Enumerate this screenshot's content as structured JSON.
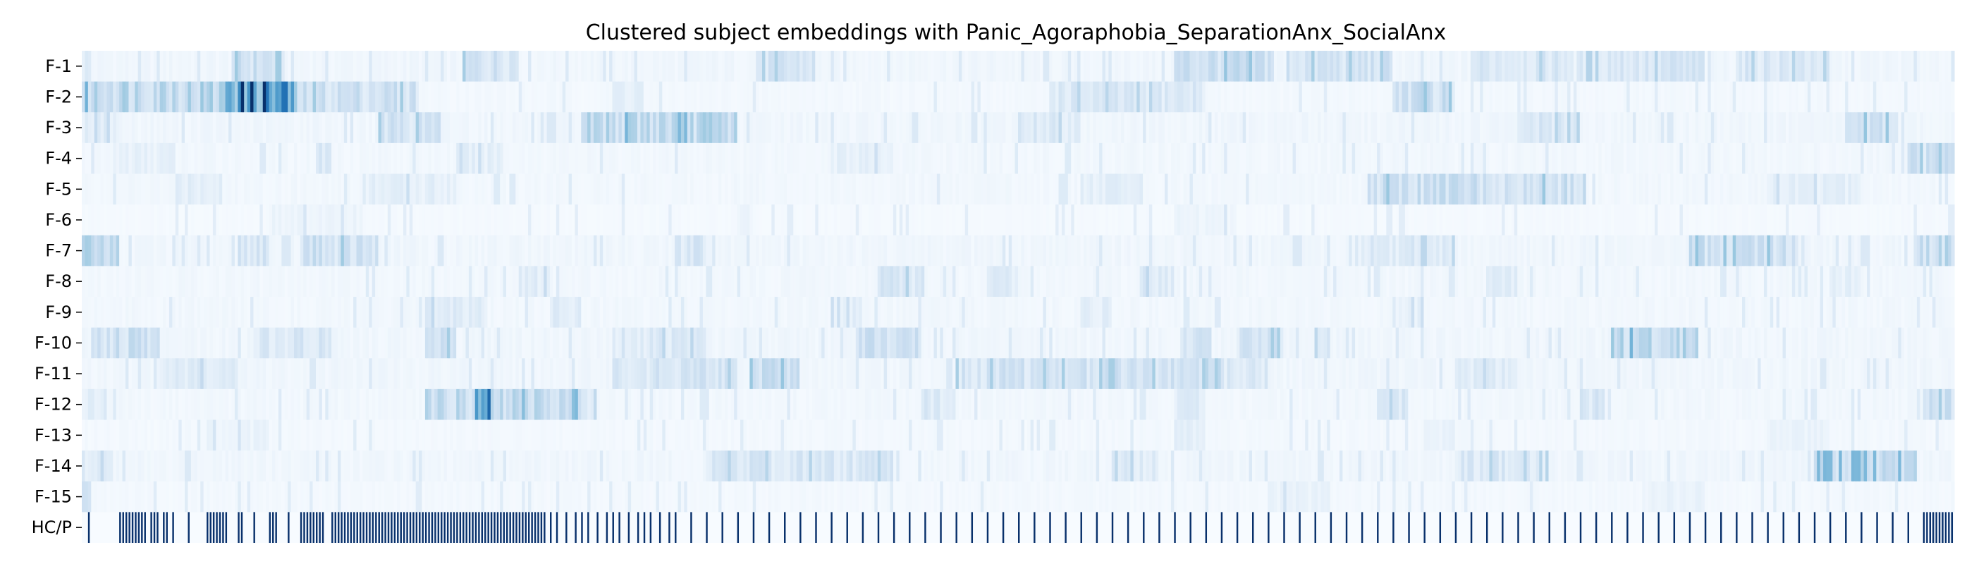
{
  "chart_data": {
    "type": "heatmap",
    "title": "Clustered subject embeddings with Panic_Agoraphobia_SeparationAnx_SocialAnx",
    "xlabel": "",
    "ylabel": "",
    "colormap": "Blues",
    "value_range": [
      0,
      1
    ],
    "n_columns": 600,
    "rows": [
      "F-1",
      "F-2",
      "F-3",
      "F-4",
      "F-5",
      "F-6",
      "F-7",
      "F-8",
      "F-9",
      "F-10",
      "F-11",
      "F-12",
      "F-13",
      "F-14",
      "F-15",
      "HC/P"
    ],
    "feature_hotspots": [
      {
        "row": "F-1",
        "base": 0.05,
        "bands": [
          [
            0,
            3,
            0.1
          ],
          [
            48,
            65,
            0.2
          ],
          [
            122,
            140,
            0.18
          ],
          [
            216,
            235,
            0.16
          ],
          [
            350,
            382,
            0.22
          ],
          [
            386,
            420,
            0.18
          ],
          [
            445,
            478,
            0.14
          ],
          [
            480,
            520,
            0.15
          ],
          [
            530,
            560,
            0.14
          ]
        ]
      },
      {
        "row": "F-2",
        "base": 0.03,
        "bands": [
          [
            0,
            60,
            0.32
          ],
          [
            46,
            68,
            0.45
          ],
          [
            60,
            108,
            0.22
          ],
          [
            170,
            180,
            0.1
          ],
          [
            310,
            360,
            0.15
          ],
          [
            420,
            440,
            0.24
          ]
        ]
      },
      {
        "row": "F-3",
        "base": 0.05,
        "bands": [
          [
            0,
            12,
            0.1
          ],
          [
            95,
            115,
            0.18
          ],
          [
            160,
            210,
            0.28
          ],
          [
            300,
            320,
            0.12
          ],
          [
            460,
            480,
            0.14
          ],
          [
            565,
            582,
            0.22
          ]
        ]
      },
      {
        "row": "F-4",
        "base": 0.04,
        "bands": [
          [
            10,
            30,
            0.06
          ],
          [
            75,
            80,
            0.14
          ],
          [
            120,
            135,
            0.08
          ],
          [
            240,
            260,
            0.07
          ],
          [
            585,
            600,
            0.2
          ]
        ]
      },
      {
        "row": "F-5",
        "base": 0.04,
        "bands": [
          [
            30,
            45,
            0.1
          ],
          [
            90,
            120,
            0.08
          ],
          [
            320,
            340,
            0.08
          ],
          [
            412,
            482,
            0.22
          ],
          [
            540,
            570,
            0.08
          ]
        ]
      },
      {
        "row": "F-6",
        "base": 0.02,
        "bands": [
          [
            60,
            90,
            0.05
          ],
          [
            210,
            215,
            0.05
          ],
          [
            350,
            370,
            0.05
          ]
        ]
      },
      {
        "row": "F-7",
        "base": 0.05,
        "bands": [
          [
            0,
            12,
            0.28
          ],
          [
            50,
            60,
            0.16
          ],
          [
            70,
            95,
            0.2
          ],
          [
            190,
            200,
            0.14
          ],
          [
            410,
            440,
            0.12
          ],
          [
            515,
            550,
            0.22
          ],
          [
            588,
            600,
            0.26
          ]
        ]
      },
      {
        "row": "F-8",
        "base": 0.04,
        "bands": [
          [
            140,
            150,
            0.1
          ],
          [
            255,
            270,
            0.16
          ],
          [
            290,
            300,
            0.12
          ],
          [
            340,
            350,
            0.12
          ],
          [
            450,
            460,
            0.1
          ],
          [
            560,
            570,
            0.08
          ]
        ]
      },
      {
        "row": "F-9",
        "base": 0.04,
        "bands": [
          [
            110,
            130,
            0.12
          ],
          [
            150,
            160,
            0.1
          ],
          [
            240,
            250,
            0.08
          ],
          [
            320,
            330,
            0.08
          ],
          [
            420,
            430,
            0.08
          ]
        ]
      },
      {
        "row": "F-10",
        "base": 0.05,
        "bands": [
          [
            3,
            25,
            0.2
          ],
          [
            55,
            80,
            0.14
          ],
          [
            110,
            120,
            0.18
          ],
          [
            170,
            200,
            0.12
          ],
          [
            248,
            268,
            0.2
          ],
          [
            352,
            362,
            0.16
          ],
          [
            370,
            385,
            0.18
          ],
          [
            395,
            400,
            0.12
          ],
          [
            490,
            518,
            0.3
          ]
        ]
      },
      {
        "row": "F-11",
        "base": 0.05,
        "bands": [
          [
            25,
            50,
            0.1
          ],
          [
            170,
            210,
            0.16
          ],
          [
            214,
            230,
            0.22
          ],
          [
            280,
            365,
            0.18
          ],
          [
            360,
            380,
            0.12
          ],
          [
            440,
            460,
            0.1
          ]
        ]
      },
      {
        "row": "F-12",
        "base": 0.04,
        "bands": [
          [
            0,
            8,
            0.1
          ],
          [
            110,
            160,
            0.26
          ],
          [
            126,
            132,
            0.4
          ],
          [
            158,
            165,
            0.12
          ],
          [
            270,
            280,
            0.14
          ],
          [
            350,
            360,
            0.1
          ],
          [
            415,
            425,
            0.14
          ],
          [
            480,
            488,
            0.16
          ],
          [
            590,
            600,
            0.2
          ]
        ]
      },
      {
        "row": "F-13",
        "base": 0.03,
        "bands": [
          [
            40,
            60,
            0.05
          ],
          [
            350,
            360,
            0.08
          ],
          [
            430,
            440,
            0.06
          ],
          [
            540,
            560,
            0.05
          ]
        ]
      },
      {
        "row": "F-14",
        "base": 0.05,
        "bands": [
          [
            0,
            10,
            0.1
          ],
          [
            200,
            260,
            0.14
          ],
          [
            330,
            345,
            0.12
          ],
          [
            440,
            470,
            0.14
          ],
          [
            555,
            588,
            0.28
          ]
        ]
      },
      {
        "row": "F-15",
        "base": 0.03,
        "bands": [
          [
            0,
            3,
            0.16
          ],
          [
            380,
            400,
            0.06
          ],
          [
            500,
            520,
            0.06
          ]
        ]
      }
    ],
    "hc_p_row": {
      "row": "HC/P",
      "description": "binary indicator row (patient = 1, shown dark navy; healthy control = 0)",
      "patient_columns": [
        2,
        12,
        13,
        14,
        15,
        16,
        17,
        18,
        19,
        20,
        22,
        23,
        24,
        26,
        27,
        29,
        34,
        40,
        41,
        42,
        43,
        44,
        45,
        46,
        50,
        51,
        55,
        60,
        61,
        62,
        66,
        70,
        71,
        72,
        73,
        74,
        75,
        76,
        77,
        80,
        81,
        82,
        83,
        84,
        85,
        86,
        87,
        88,
        89,
        90,
        91,
        92,
        93,
        94,
        95,
        96,
        97,
        98,
        99,
        100,
        101,
        102,
        103,
        104,
        105,
        106,
        107,
        108,
        109,
        110,
        111,
        112,
        113,
        114,
        115,
        116,
        117,
        118,
        119,
        120,
        121,
        122,
        123,
        124,
        125,
        126,
        127,
        128,
        129,
        130,
        131,
        132,
        133,
        134,
        135,
        136,
        137,
        138,
        139,
        140,
        141,
        142,
        143,
        144,
        145,
        146,
        147,
        148,
        150,
        152,
        155,
        158,
        160,
        162,
        165,
        168,
        170,
        172,
        175,
        178,
        180,
        182,
        185,
        188,
        190,
        195,
        200,
        205,
        210,
        215,
        220,
        225,
        230,
        235,
        240,
        245,
        250,
        255,
        260,
        265,
        270,
        275,
        280,
        285,
        290,
        295,
        300,
        305,
        310,
        315,
        320,
        325,
        330,
        335,
        340,
        345,
        350,
        355,
        360,
        365,
        370,
        375,
        380,
        385,
        390,
        395,
        400,
        405,
        410,
        415,
        420,
        425,
        430,
        435,
        440,
        445,
        450,
        455,
        460,
        465,
        470,
        475,
        480,
        485,
        490,
        495,
        500,
        505,
        510,
        515,
        520,
        525,
        530,
        535,
        540,
        545,
        550,
        555,
        560,
        565,
        570,
        575,
        580,
        585,
        590,
        591,
        592,
        593,
        594,
        595,
        596,
        597,
        598,
        599
      ]
    }
  }
}
